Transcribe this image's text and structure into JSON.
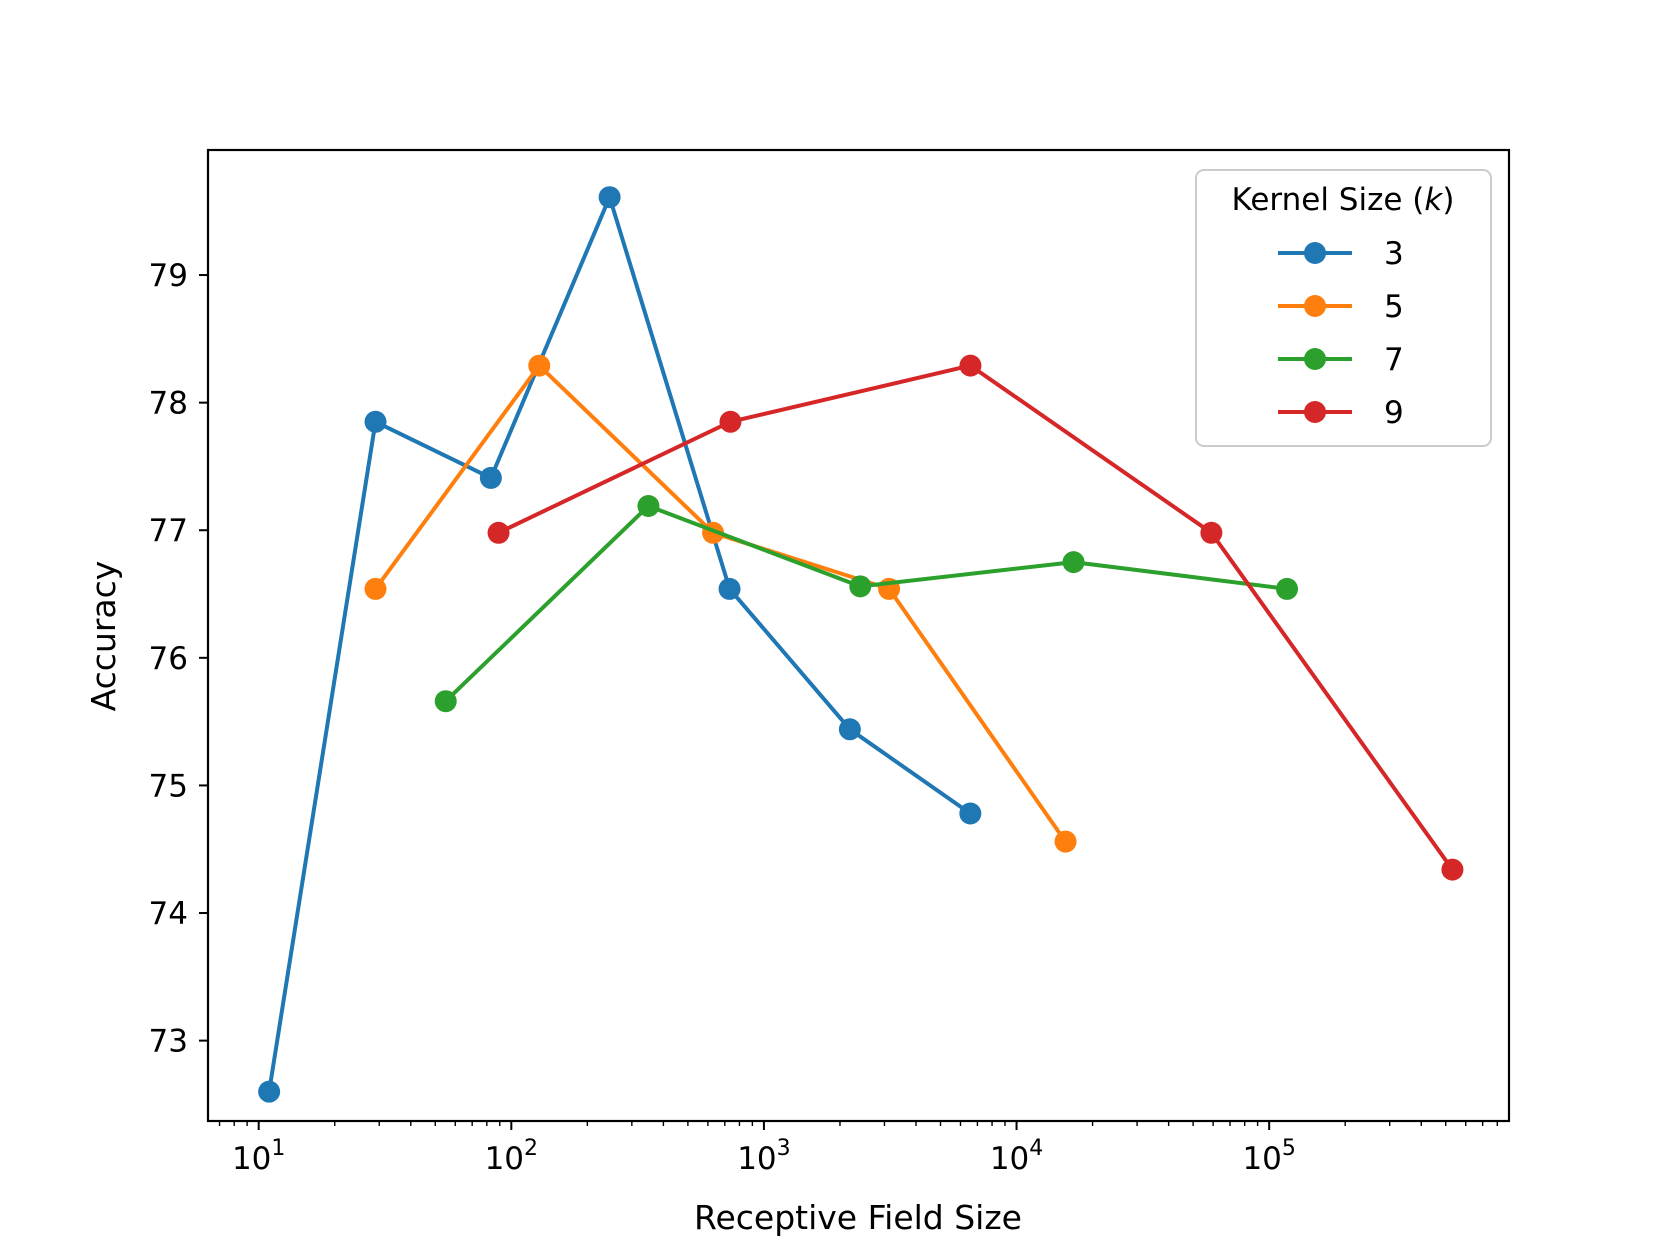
{
  "chart_data": {
    "type": "line",
    "title": "",
    "xlabel": "Receptive Field Size",
    "ylabel": "Accuracy",
    "xscale": "log",
    "xlim": [
      6.3,
      890000
    ],
    "ylim": [
      72.37,
      79.98
    ],
    "grid": false,
    "x_ticks": [
      {
        "base": "10",
        "exp": "1",
        "value": 10
      },
      {
        "base": "10",
        "exp": "2",
        "value": 100
      },
      {
        "base": "10",
        "exp": "3",
        "value": 1000
      },
      {
        "base": "10",
        "exp": "4",
        "value": 10000
      },
      {
        "base": "10",
        "exp": "5",
        "value": 100000
      }
    ],
    "y_ticks": [
      "73",
      "74",
      "75",
      "76",
      "77",
      "78",
      "79"
    ],
    "legend": {
      "title_prefix": "Kernel Size (",
      "title_var": "k",
      "title_suffix": ")",
      "placement": "top-right"
    },
    "series": [
      {
        "name": "3",
        "color": "#1f77b4",
        "x": [
          11,
          29,
          83,
          245,
          731,
          2189,
          6563
        ],
        "y": [
          72.6,
          77.85,
          77.41,
          79.61,
          76.54,
          75.44,
          74.78
        ]
      },
      {
        "name": "5",
        "color": "#ff7f0e",
        "x": [
          29,
          129,
          629,
          3129,
          15629
        ],
        "y": [
          76.54,
          78.29,
          76.98,
          76.54,
          74.56
        ]
      },
      {
        "name": "7",
        "color": "#2ca02c",
        "x": [
          55,
          349,
          2407,
          16813,
          117655
        ],
        "y": [
          75.66,
          77.19,
          76.56,
          76.75,
          76.54
        ]
      },
      {
        "name": "9",
        "color": "#d62728",
        "x": [
          89,
          737,
          6569,
          59057,
          531449
        ],
        "y": [
          76.98,
          77.85,
          78.29,
          76.98,
          74.34
        ]
      }
    ]
  }
}
